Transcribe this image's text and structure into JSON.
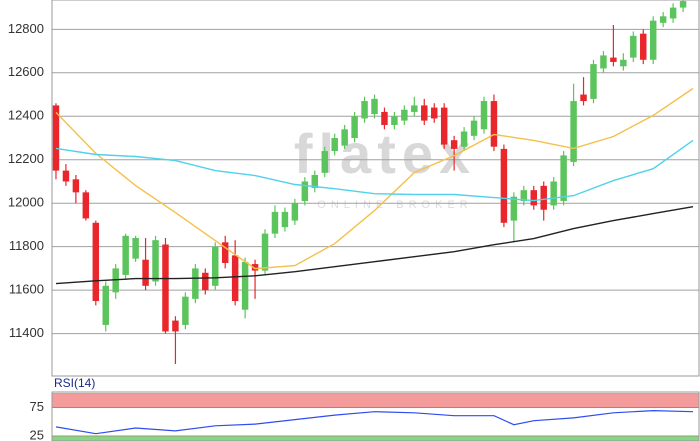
{
  "chart_data": [
    {
      "type": "candlestick",
      "watermark": "flatex",
      "watermark_sub": "ONLINE BROKER",
      "xlim": [
        -0.4,
        64.6
      ],
      "ylim": [
        11205,
        12935
      ],
      "yticks": [
        11400,
        11600,
        11800,
        12000,
        12200,
        12400,
        12600,
        12800
      ],
      "grid": true,
      "up_color": "#5cc45c",
      "down_color": "#e8262b",
      "open": [
        12450,
        12150,
        12110,
        12050,
        11910,
        11440,
        11590,
        11670,
        11745,
        11740,
        11640,
        11810,
        11460,
        11440,
        11560,
        11680,
        11620,
        11820,
        11760,
        11510,
        11720,
        11690,
        11860,
        11890,
        11920,
        12010,
        12070,
        12140,
        12240,
        12265,
        12300,
        12390,
        12410,
        12420,
        12360,
        12380,
        12420,
        12450,
        12440,
        12440,
        12290,
        12260,
        12310,
        12340,
        12470,
        12250,
        11920,
        12010,
        12060,
        12080,
        11990,
        12010,
        12190,
        12500,
        12480,
        12620,
        12670,
        12630,
        12670,
        12780,
        12660,
        12830,
        12850,
        12900
      ],
      "high": [
        12460,
        12180,
        12130,
        12060,
        11920,
        11640,
        11720,
        11860,
        11850,
        11840,
        11850,
        11840,
        11480,
        11590,
        11720,
        11700,
        11820,
        11850,
        11830,
        11750,
        11740,
        11880,
        11990,
        11980,
        12020,
        12120,
        12150,
        12260,
        12320,
        12360,
        12420,
        12490,
        12500,
        12440,
        12420,
        12450,
        12490,
        12480,
        12460,
        12460,
        12310,
        12350,
        12400,
        12490,
        12500,
        12270,
        12050,
        12080,
        12080,
        12100,
        12120,
        12240,
        12550,
        12580,
        12660,
        12700,
        12820,
        12690,
        12790,
        12800,
        12860,
        12880,
        12920,
        12950
      ],
      "low": [
        12110,
        12080,
        12000,
        11920,
        11530,
        11410,
        11560,
        11650,
        11730,
        11600,
        11620,
        11400,
        11260,
        11420,
        11540,
        11580,
        11600,
        11700,
        11530,
        11470,
        11560,
        11670,
        11840,
        11870,
        11900,
        11990,
        12050,
        12120,
        12220,
        12250,
        12280,
        12370,
        12390,
        12340,
        12340,
        12360,
        12400,
        12360,
        12370,
        12250,
        12150,
        12240,
        12290,
        12320,
        12240,
        11890,
        11820,
        11990,
        11970,
        11920,
        11970,
        11990,
        12170,
        12450,
        12460,
        12600,
        12630,
        12610,
        12650,
        12640,
        12640,
        12810,
        12830,
        12880
      ],
      "close": [
        12150,
        12100,
        12050,
        11930,
        11550,
        11620,
        11700,
        11850,
        11840,
        11620,
        11830,
        11410,
        11410,
        11570,
        11700,
        11600,
        11800,
        11725,
        11550,
        11730,
        11690,
        11860,
        11960,
        11960,
        12000,
        12100,
        12130,
        12240,
        12300,
        12340,
        12400,
        12470,
        12480,
        12360,
        12400,
        12430,
        12450,
        12380,
        12390,
        12270,
        12250,
        12330,
        12380,
        12470,
        12260,
        11910,
        12030,
        12060,
        11990,
        11970,
        12100,
        12220,
        12470,
        12470,
        12640,
        12680,
        12650,
        12660,
        12770,
        12660,
        12840,
        12860,
        12900,
        12930
      ],
      "series": [
        {
          "color": "#f5c04a",
          "x": [
            0,
            4,
            8,
            12,
            16,
            20,
            24,
            28,
            32,
            36,
            40,
            44,
            48,
            52,
            56,
            60,
            64
          ],
          "values": [
            12418,
            12229,
            12081,
            11957,
            11828,
            11699,
            11713,
            11814,
            11966,
            12141,
            12219,
            12316,
            12289,
            12252,
            12307,
            12404,
            12528
          ]
        },
        {
          "color": "#4fd2ea",
          "x": [
            0,
            4,
            8,
            12,
            16,
            20,
            24,
            28,
            32,
            36,
            40,
            44,
            48,
            52,
            56,
            60,
            64
          ],
          "values": [
            12252,
            12224,
            12215,
            12196,
            12150,
            12127,
            12086,
            12067,
            12044,
            12040,
            12040,
            12026,
            12012,
            12035,
            12104,
            12159,
            12289
          ]
        },
        {
          "color": "#222222",
          "x": [
            0,
            4,
            8,
            12,
            16,
            20,
            24,
            28,
            32,
            36,
            40,
            44,
            48,
            52,
            56,
            60,
            64
          ],
          "values": [
            11630,
            11643,
            11653,
            11653,
            11657,
            11666,
            11685,
            11708,
            11731,
            11754,
            11777,
            11809,
            11837,
            11883,
            11920,
            11952,
            11984
          ]
        }
      ]
    },
    {
      "type": "line",
      "title": "RSI(14)",
      "xlim": [
        -0.4,
        64.6
      ],
      "ylim": [
        16,
        103
      ],
      "yticks": [
        25,
        75
      ],
      "bands": [
        {
          "from": 75,
          "to": 100,
          "color": "#f28b8b"
        },
        {
          "from": 0,
          "to": 25,
          "color": "#72cf72"
        }
      ],
      "color": "#2f4cf0",
      "x": [
        0,
        4,
        8,
        12,
        16,
        20,
        24,
        28,
        32,
        36,
        40,
        44,
        46,
        48,
        52,
        56,
        60,
        64
      ],
      "values": [
        41,
        29,
        39,
        34,
        43,
        46,
        54,
        62,
        68,
        66,
        61,
        61,
        45,
        52,
        57,
        66,
        70,
        68
      ]
    }
  ]
}
